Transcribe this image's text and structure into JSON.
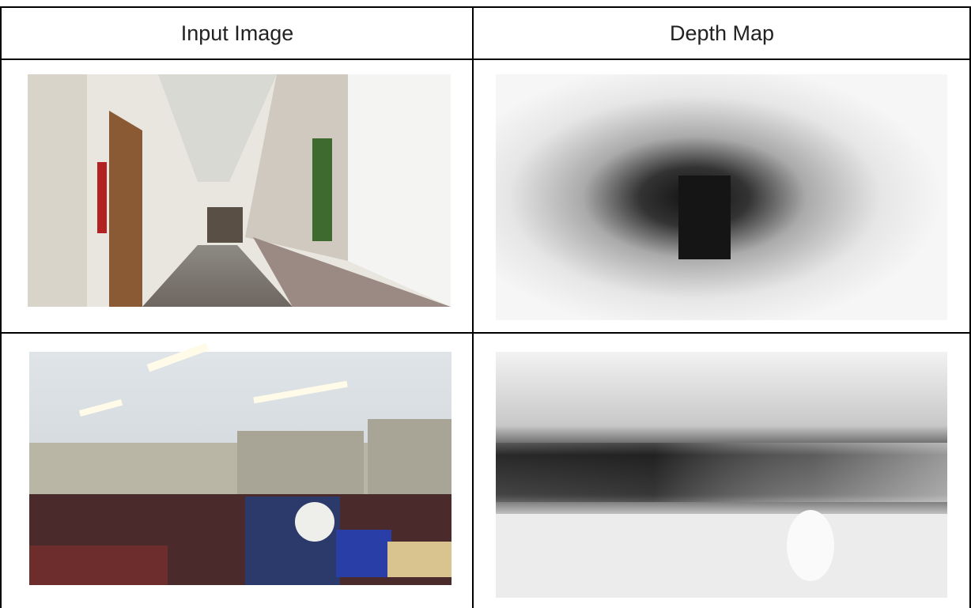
{
  "table": {
    "header": [
      "Input Image",
      "Depth Map"
    ]
  }
}
